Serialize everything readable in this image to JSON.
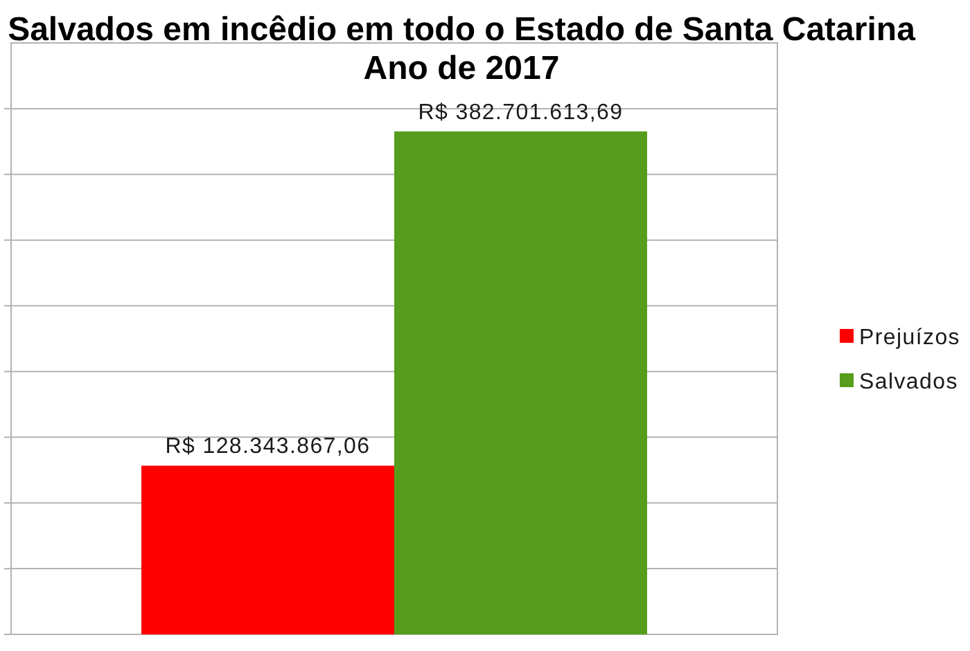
{
  "chart_data": {
    "type": "bar",
    "title": "Salvados em incêdio em todo o Estado de Santa Catarina\nAno de 2017",
    "categories": [
      null
    ],
    "series": [
      {
        "name": "Prejuízos",
        "color": "#ff0000",
        "values": [
          128343867.06
        ],
        "value_labels": [
          "R$ 128.343.867,06"
        ]
      },
      {
        "name": "Salvados",
        "color": "#579d1c",
        "values": [
          382701613.69
        ],
        "value_labels": [
          "R$ 382.701.613,69"
        ]
      }
    ],
    "ylim": [
      0,
      450000000
    ],
    "yticks": [
      {
        "value": 0,
        "label": null
      },
      {
        "value": 50000000,
        "label": null
      },
      {
        "value": 100000000,
        "label": null
      },
      {
        "value": 150000000,
        "label": null
      },
      {
        "value": 200000000,
        "label": null
      },
      {
        "value": 250000000,
        "label": null
      },
      {
        "value": 300000000,
        "label": null
      },
      {
        "value": 350000000,
        "label": null
      },
      {
        "value": 400000000,
        "label": null
      }
    ],
    "grid": "y",
    "legend": "right"
  }
}
